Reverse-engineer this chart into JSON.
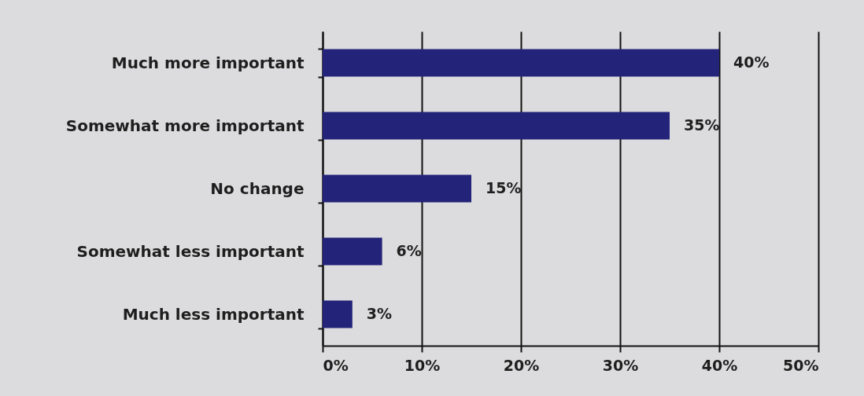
{
  "chart_data": {
    "type": "bar",
    "orientation": "horizontal",
    "categories": [
      "Much more important",
      "Somewhat more important",
      "No change",
      "Somewhat less important",
      "Much less important"
    ],
    "values": [
      40,
      35,
      15,
      6,
      3
    ],
    "value_labels": [
      "40%",
      "35%",
      "15%",
      "6%",
      "3%"
    ],
    "color": "#23237a",
    "xlim": [
      0,
      50
    ],
    "xticks": [
      {
        "value": 0,
        "label": "0%"
      },
      {
        "value": 10,
        "label": "10%"
      },
      {
        "value": 20,
        "label": "20%"
      },
      {
        "value": 30,
        "label": "30%"
      },
      {
        "value": 40,
        "label": "40%"
      },
      {
        "value": 50,
        "label": "50%"
      }
    ],
    "grid": "x"
  }
}
